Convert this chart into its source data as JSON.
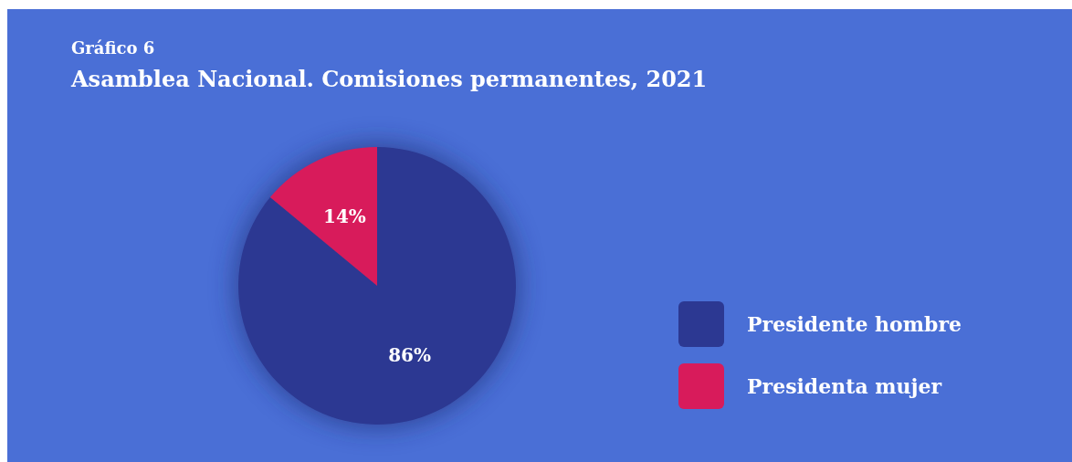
{
  "chart_data": {
    "type": "pie",
    "title": "Gráfico 6",
    "subtitle": "Asamblea Nacional. Comisiones permanentes, 2021",
    "categories": [
      "Presidente hombre",
      "Presidenta mujer"
    ],
    "values": [
      86,
      14
    ],
    "colors": [
      "#2c3892",
      "#d81b5b"
    ],
    "value_labels": [
      "86%",
      "14%"
    ],
    "legend": "right"
  }
}
